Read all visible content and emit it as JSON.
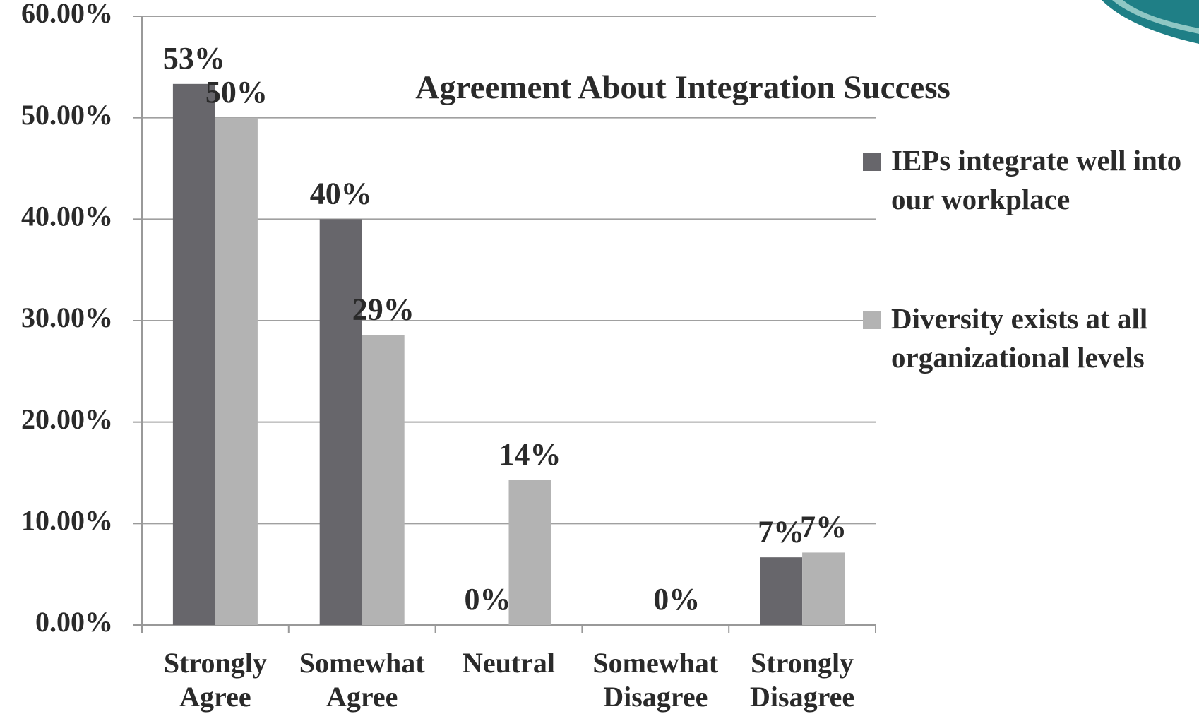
{
  "chart_data": {
    "type": "bar",
    "title": "Agreement About Integration Success",
    "categories": [
      "Strongly Agree",
      "Somewhat Agree",
      "Neutral",
      "Somewhat Disagree",
      "Strongly Disagree"
    ],
    "series": [
      {
        "name": "IEPs integrate well into our workplace",
        "color": "#67666b",
        "values": [
          53.33,
          40,
          0,
          0,
          6.67
        ],
        "value_labels": [
          "53%",
          "40%",
          "0%",
          null,
          "7%"
        ]
      },
      {
        "name": "Diversity exists at all organizational levels",
        "color": "#b3b3b3",
        "values": [
          50,
          28.57,
          14.29,
          0,
          7.14
        ],
        "value_labels": [
          "50%",
          "29%",
          "14%",
          "0%",
          "7%"
        ]
      }
    ],
    "ylim": [
      0,
      60
    ],
    "yticks": [
      {
        "value": 0,
        "label": "0.00%"
      },
      {
        "value": 10,
        "label": "10.00%"
      },
      {
        "value": 20,
        "label": "20.00%"
      },
      {
        "value": 30,
        "label": "30.00%"
      },
      {
        "value": 40,
        "label": "40.00%"
      },
      {
        "value": 50,
        "label": "50.00%"
      },
      {
        "value": 60,
        "label": "60.00%"
      }
    ],
    "grid": true,
    "legend": "right"
  }
}
